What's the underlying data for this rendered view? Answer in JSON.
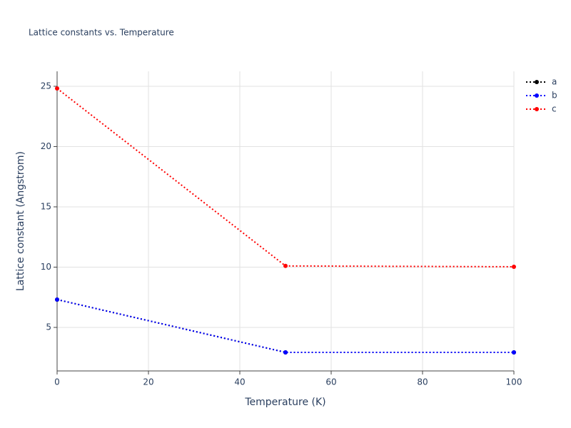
{
  "chart_data": {
    "type": "line",
    "title": "Lattice constants vs. Temperature",
    "x_label": "Temperature (K)",
    "y_label": "Lattice constant (Angstrom)",
    "x": [
      0,
      50,
      100
    ],
    "series": [
      {
        "name": "a",
        "color": "#000000",
        "values": [
          7.31,
          2.93,
          2.93
        ]
      },
      {
        "name": "b",
        "color": "#0000ff",
        "values": [
          7.31,
          2.93,
          2.93
        ]
      },
      {
        "name": "c",
        "color": "#ff0000",
        "values": [
          24.82,
          10.1,
          10.03
        ]
      }
    ],
    "xlim": [
      0,
      100
    ],
    "xticks": [
      0,
      20,
      40,
      60,
      80,
      100
    ],
    "ylim": [
      1.39,
      26.24
    ],
    "yticks": [
      5,
      10,
      15,
      20,
      25
    ],
    "grid": true,
    "dash": "dot",
    "legend": "top-right"
  }
}
